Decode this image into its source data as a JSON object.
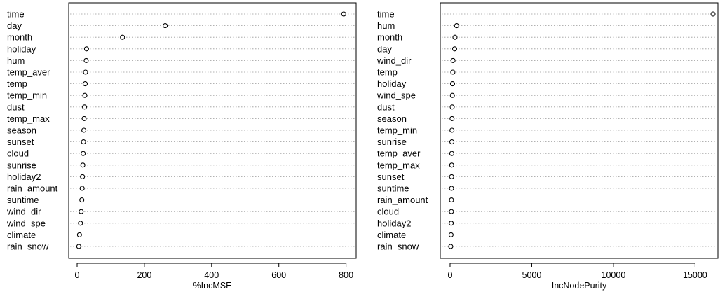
{
  "chart_data": [
    {
      "type": "scatter",
      "variables": [
        "time",
        "day",
        "month",
        "holiday",
        "hum",
        "temp_aver",
        "temp",
        "temp_min",
        "dust",
        "temp_max",
        "season",
        "sunset",
        "cloud",
        "sunrise",
        "holiday2",
        "rain_amount",
        "suntime",
        "wind_dir",
        "wind_spe",
        "climate",
        "rain_snow"
      ],
      "values": [
        793,
        262,
        135,
        28,
        27,
        25,
        24,
        23,
        22,
        21,
        20,
        19,
        18,
        17,
        16,
        15,
        14,
        12,
        10,
        7,
        5
      ],
      "xticks": [
        0,
        200,
        400,
        600,
        800
      ],
      "xlim": [
        -25,
        830
      ],
      "xlabel": "%IncMSE",
      "grid": true
    },
    {
      "type": "scatter",
      "variables": [
        "time",
        "hum",
        "month",
        "day",
        "wind_dir",
        "temp",
        "holiday",
        "wind_spe",
        "dust",
        "season",
        "temp_min",
        "sunrise",
        "temp_aver",
        "temp_max",
        "sunset",
        "suntime",
        "rain_amount",
        "cloud",
        "holiday2",
        "climate",
        "rain_snow"
      ],
      "values": [
        16100,
        400,
        300,
        280,
        180,
        170,
        150,
        140,
        130,
        120,
        115,
        110,
        105,
        100,
        95,
        90,
        85,
        80,
        70,
        60,
        40
      ],
      "xticks": [
        0,
        5000,
        10000,
        15000
      ],
      "xlim": [
        -600,
        16400
      ],
      "xlabel": "IncNodePurity",
      "grid": true
    }
  ]
}
